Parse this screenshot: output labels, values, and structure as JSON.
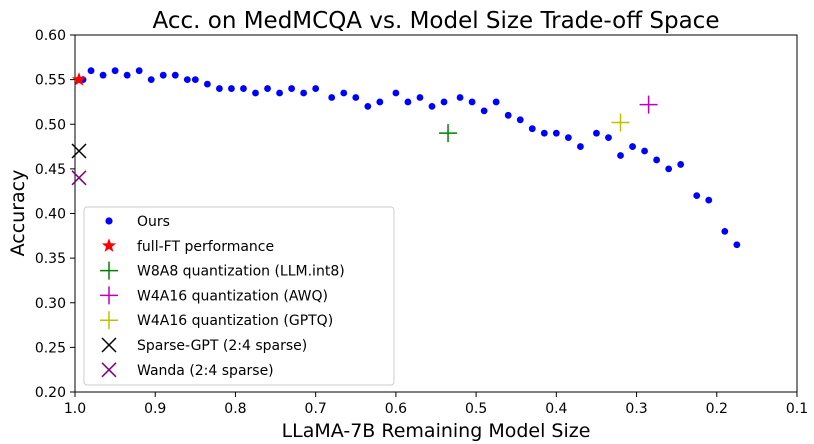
{
  "chart_data": {
    "type": "scatter",
    "title": "Acc. on MedMCQA vs. Model Size Trade-off Space",
    "xlabel": "LLaMA-7B Remaining Model Size",
    "ylabel": "Accuracy",
    "xlim": [
      1.0,
      0.1
    ],
    "ylim": [
      0.2,
      0.6
    ],
    "xticks": [
      1.0,
      0.9,
      0.8,
      0.7,
      0.6,
      0.5,
      0.4,
      0.3,
      0.2,
      0.1
    ],
    "xtick_labels": [
      "1.0",
      "0.9",
      "0.8",
      "0.7",
      "0.6",
      "0.5",
      "0.4",
      "0.3",
      "0.2",
      "0.1"
    ],
    "yticks": [
      0.2,
      0.25,
      0.3,
      0.35,
      0.4,
      0.45,
      0.5,
      0.55,
      0.6
    ],
    "ytick_labels": [
      "0.20",
      "0.25",
      "0.30",
      "0.35",
      "0.40",
      "0.45",
      "0.50",
      "0.55",
      "0.60"
    ],
    "grid": false,
    "legend_position": "lower-left",
    "series": [
      {
        "name": "Ours",
        "marker": "dot",
        "color": "#0000ff",
        "points": [
          [
            0.99,
            0.55
          ],
          [
            0.98,
            0.56
          ],
          [
            0.965,
            0.555
          ],
          [
            0.95,
            0.56
          ],
          [
            0.935,
            0.555
          ],
          [
            0.92,
            0.56
          ],
          [
            0.905,
            0.55
          ],
          [
            0.89,
            0.555
          ],
          [
            0.875,
            0.555
          ],
          [
            0.86,
            0.55
          ],
          [
            0.85,
            0.55
          ],
          [
            0.835,
            0.545
          ],
          [
            0.82,
            0.54
          ],
          [
            0.805,
            0.54
          ],
          [
            0.79,
            0.54
          ],
          [
            0.775,
            0.535
          ],
          [
            0.76,
            0.54
          ],
          [
            0.745,
            0.535
          ],
          [
            0.73,
            0.54
          ],
          [
            0.715,
            0.535
          ],
          [
            0.7,
            0.54
          ],
          [
            0.68,
            0.53
          ],
          [
            0.665,
            0.535
          ],
          [
            0.65,
            0.53
          ],
          [
            0.635,
            0.52
          ],
          [
            0.62,
            0.525
          ],
          [
            0.6,
            0.535
          ],
          [
            0.585,
            0.525
          ],
          [
            0.57,
            0.53
          ],
          [
            0.555,
            0.52
          ],
          [
            0.54,
            0.525
          ],
          [
            0.52,
            0.53
          ],
          [
            0.505,
            0.525
          ],
          [
            0.49,
            0.515
          ],
          [
            0.475,
            0.525
          ],
          [
            0.46,
            0.51
          ],
          [
            0.445,
            0.505
          ],
          [
            0.43,
            0.495
          ],
          [
            0.415,
            0.49
          ],
          [
            0.4,
            0.49
          ],
          [
            0.385,
            0.485
          ],
          [
            0.37,
            0.475
          ],
          [
            0.35,
            0.49
          ],
          [
            0.335,
            0.485
          ],
          [
            0.32,
            0.465
          ],
          [
            0.305,
            0.475
          ],
          [
            0.29,
            0.47
          ],
          [
            0.275,
            0.46
          ],
          [
            0.26,
            0.45
          ],
          [
            0.245,
            0.455
          ],
          [
            0.225,
            0.42
          ],
          [
            0.21,
            0.415
          ],
          [
            0.19,
            0.38
          ],
          [
            0.175,
            0.365
          ]
        ]
      },
      {
        "name": "full-FT performance",
        "marker": "star",
        "color": "#ff0000",
        "points": [
          [
            0.995,
            0.55
          ]
        ]
      },
      {
        "name": "W8A8 quantization (LLM.int8)",
        "marker": "plus",
        "color": "#008000",
        "points": [
          [
            0.535,
            0.49
          ]
        ]
      },
      {
        "name": "W4A16 quantization (AWQ)",
        "marker": "plus",
        "color": "#bf00bf",
        "points": [
          [
            0.285,
            0.522
          ]
        ]
      },
      {
        "name": "W4A16 quantization (GPTQ)",
        "marker": "plus",
        "color": "#bfbf00",
        "points": [
          [
            0.32,
            0.502
          ]
        ]
      },
      {
        "name": "Sparse-GPT (2:4 sparse)",
        "marker": "x",
        "color": "#000000",
        "points": [
          [
            0.995,
            0.47
          ]
        ]
      },
      {
        "name": "Wanda (2:4 sparse)",
        "marker": "x",
        "color": "#800080",
        "points": [
          [
            0.995,
            0.44
          ]
        ]
      }
    ]
  }
}
